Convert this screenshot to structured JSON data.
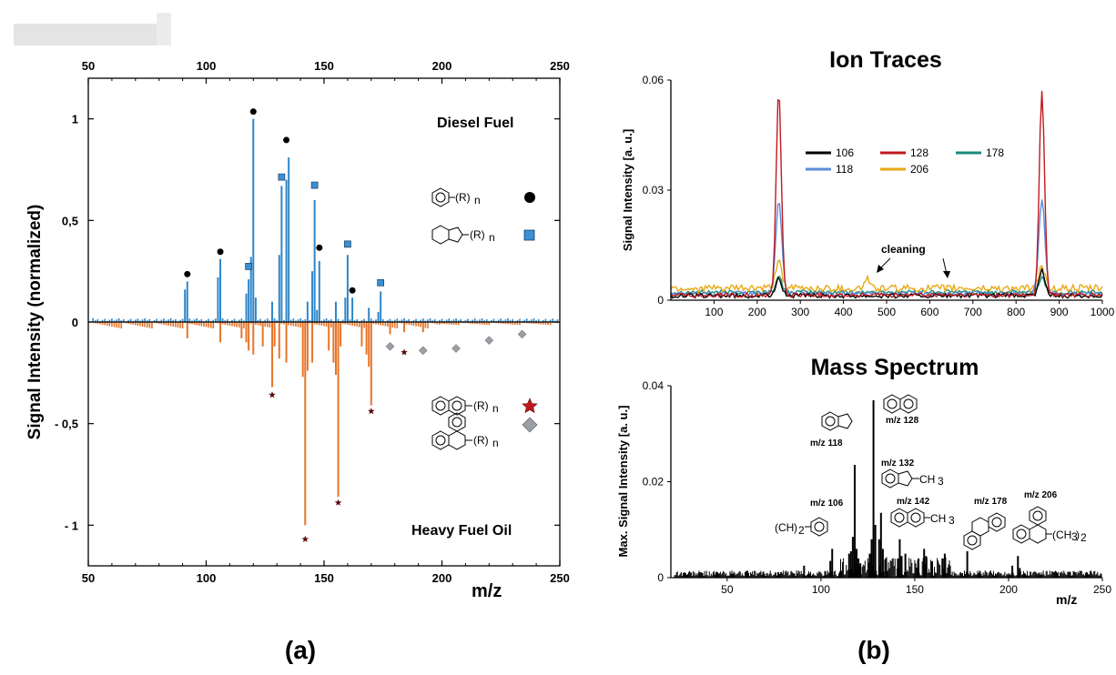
{
  "chart_data": [
    {
      "type": "bar",
      "panel_label": "(a)",
      "xlabel": "m/z",
      "ylabel": "Signal Intensity (normalized)",
      "xlim": [
        50,
        250
      ],
      "ylim": [
        -1.2,
        1.2
      ],
      "x_ticks": [
        "50",
        "100",
        "150",
        "200",
        "250"
      ],
      "y_ticks": [
        {
          "value": 1,
          "label": "1"
        },
        {
          "value": 0.5,
          "label": "0,5"
        },
        {
          "value": 0,
          "label": "0"
        },
        {
          "value": -0.5,
          "label": "- 0,5"
        },
        {
          "value": -1,
          "label": "- 1"
        }
      ],
      "annotations": {
        "top": "Diesel Fuel",
        "bottom": "Heavy Fuel Oil"
      },
      "legend": [
        {
          "label": "(R)",
          "subscript": "n",
          "marker": "circle",
          "color": "#000000"
        },
        {
          "label": "(R)",
          "subscript": "n",
          "marker": "square",
          "color": "#3b8fd2"
        },
        {
          "label": "(R)",
          "subscript": "n",
          "marker": "star",
          "color": "#b22222"
        },
        {
          "label": "(R)",
          "subscript": "n",
          "marker": "diamond",
          "color": "#9aa0a6"
        }
      ],
      "series": [
        {
          "name": "Diesel Fuel",
          "color": "#2f86c9",
          "x": [
            91,
            92,
            105,
            106,
            117,
            118,
            119,
            120,
            121,
            128,
            131,
            132,
            134,
            135,
            143,
            145,
            146,
            147,
            148,
            155,
            159,
            160,
            162,
            169,
            173,
            174
          ],
          "values": [
            0.16,
            0.2,
            0.22,
            0.31,
            0.14,
            0.21,
            0.32,
            1.0,
            0.12,
            0.1,
            0.33,
            0.67,
            0.7,
            0.81,
            0.1,
            0.25,
            0.6,
            0.06,
            0.3,
            0.1,
            0.12,
            0.33,
            0.12,
            0.07,
            0.05,
            0.15
          ]
        },
        {
          "name": "Heavy Fuel Oil",
          "color": "#e8742a",
          "x": [
            92,
            106,
            115,
            117,
            118,
            120,
            124,
            128,
            129,
            131,
            134,
            141,
            142,
            143,
            145,
            152,
            154,
            155,
            156,
            157,
            166,
            168,
            169,
            170,
            178,
            184,
            192
          ],
          "values": [
            -0.08,
            -0.1,
            -0.08,
            -0.1,
            -0.14,
            -0.16,
            -0.12,
            -0.32,
            -0.12,
            -0.18,
            -0.2,
            -0.27,
            -1.0,
            -0.24,
            -0.2,
            -0.14,
            -0.2,
            -0.26,
            -0.86,
            -0.12,
            -0.12,
            -0.16,
            -0.22,
            -0.41,
            -0.06,
            -0.05,
            -0.05
          ]
        }
      ]
    },
    {
      "type": "line",
      "title": "Ion Traces",
      "ylabel": "Signal Intensity [a. u.]",
      "xlim": [
        0,
        1000
      ],
      "ylim": [
        0,
        0.06
      ],
      "x_ticks": [
        "100",
        "200",
        "300",
        "400",
        "500",
        "600",
        "700",
        "800",
        "900",
        "1000"
      ],
      "y_ticks": [
        "0",
        "0.03",
        "0.06"
      ],
      "annotation": "cleaning",
      "series": [
        {
          "name": "106",
          "color": "#000000",
          "peak_x": [
            250,
            860
          ],
          "peak_y": [
            0.005,
            0.007
          ]
        },
        {
          "name": "118",
          "color": "#5b8bd6",
          "peak_x": [
            250,
            860
          ],
          "peak_y": [
            0.025,
            0.026
          ]
        },
        {
          "name": "128",
          "color": "#c0191f",
          "peak_x": [
            250,
            860
          ],
          "peak_y": [
            0.056,
            0.056
          ]
        },
        {
          "name": "206",
          "color": "#e8a917",
          "peak_x": [
            250,
            860
          ],
          "peak_y": [
            0.008,
            0.006
          ]
        },
        {
          "name": "178",
          "color": "#1b8a7a",
          "peak_x": [
            250,
            860
          ],
          "peak_y": [
            0.004,
            0.004
          ]
        }
      ]
    },
    {
      "type": "bar",
      "title": "Mass Spectrum",
      "xlabel": "m/z",
      "ylabel": "Max. Signal Intensity [a. u.]",
      "xlim": [
        20,
        250
      ],
      "ylim": [
        0,
        0.04
      ],
      "x_ticks": [
        "50",
        "100",
        "150",
        "200",
        "250"
      ],
      "y_ticks": [
        "0",
        "0.02",
        "0.04"
      ],
      "series": [
        {
          "name": "Mass Spectrum",
          "color": "#000000",
          "x": [
            91,
            105,
            106,
            115,
            116,
            117,
            118,
            119,
            120,
            121,
            126,
            127,
            128,
            129,
            131,
            132,
            133,
            141,
            142,
            143,
            145,
            152,
            155,
            156,
            165,
            166,
            178,
            202,
            205,
            206
          ],
          "values": [
            0.0025,
            0.0035,
            0.006,
            0.005,
            0.0055,
            0.0085,
            0.0235,
            0.006,
            0.004,
            0.003,
            0.005,
            0.008,
            0.037,
            0.011,
            0.008,
            0.0135,
            0.006,
            0.004,
            0.008,
            0.0045,
            0.005,
            0.004,
            0.006,
            0.0045,
            0.004,
            0.005,
            0.0055,
            0.0025,
            0.0045,
            0.002
          ]
        }
      ],
      "peak_labels": [
        "m/z 106",
        "m/z 118",
        "m/z 128",
        "m/z 132",
        "m/z 142",
        "m/z 178",
        "m/z 206"
      ],
      "substituents": {
        "ch3_128": "CH",
        "ch3_142": "CH",
        "sub_3": "3",
        "ch32_106": "(CH",
        "ch32_206": "(CH",
        "sub_2": ")",
        "sub_2b": "2",
        "sub_3b": "3"
      }
    }
  ]
}
